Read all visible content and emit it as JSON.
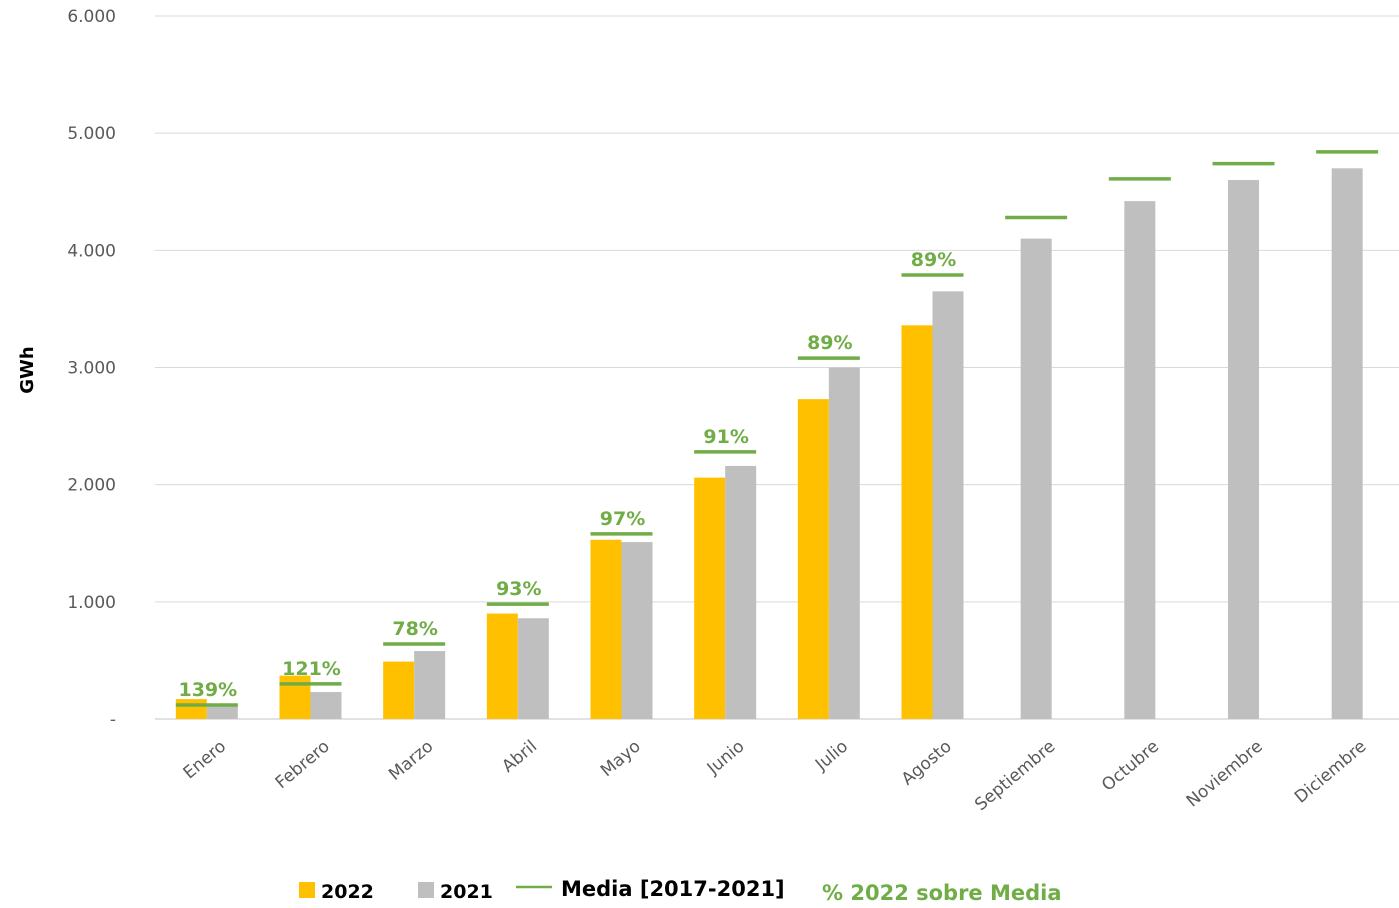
{
  "chart_data": {
    "type": "bar",
    "ylabel": "GWh",
    "ylim": [
      0,
      6000
    ],
    "yticks": [
      0,
      1000,
      2000,
      3000,
      4000,
      5000,
      6000
    ],
    "ytick_labels": [
      "-",
      "1.000",
      "2.000",
      "3.000",
      "4.000",
      "5.000",
      "6.000"
    ],
    "categories": [
      "Enero",
      "Febrero",
      "Marzo",
      "Abril",
      "Mayo",
      "Junio",
      "Julio",
      "Agosto",
      "Septiembre",
      "Octubre",
      "Noviembre",
      "Diciembre"
    ],
    "series": [
      {
        "name": "2022",
        "kind": "bar",
        "color": "#ffc000",
        "values": [
          170,
          370,
          490,
          900,
          1530,
          2060,
          2730,
          3360,
          null,
          null,
          null,
          null
        ]
      },
      {
        "name": "2021",
        "kind": "bar",
        "color": "#bfbfbf",
        "values": [
          110,
          230,
          580,
          860,
          1510,
          2160,
          3000,
          3650,
          4100,
          4420,
          4600,
          4700
        ]
      },
      {
        "name": "Media [2017-2021]",
        "kind": "line-marker",
        "color": "#70ad47",
        "values": [
          120,
          300,
          640,
          980,
          1580,
          2280,
          3080,
          3790,
          4280,
          4610,
          4740,
          4840
        ]
      }
    ],
    "annotations": {
      "name": "% 2022 sobre Media",
      "color": "#70ad47",
      "labels": [
        "139%",
        "121%",
        "78%",
        "93%",
        "97%",
        "91%",
        "89%",
        "89%",
        null,
        null,
        null,
        null
      ]
    },
    "grid": true,
    "legend_position": "bottom"
  }
}
